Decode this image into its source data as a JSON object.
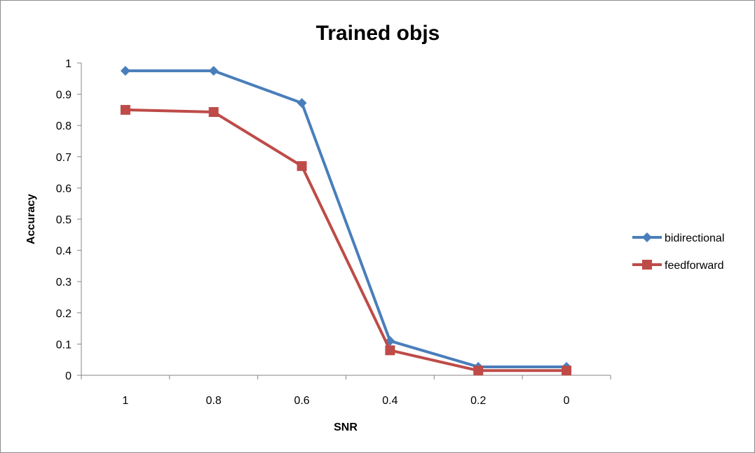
{
  "chart_data": {
    "type": "line",
    "title": "Trained objs",
    "xlabel": "SNR",
    "ylabel": "Accuracy",
    "categories": [
      "1",
      "0.8",
      "0.6",
      "0.4",
      "0.2",
      "0"
    ],
    "ylim": [
      0,
      1
    ],
    "yticks": [
      "0",
      "0.1",
      "0.2",
      "0.3",
      "0.4",
      "0.5",
      "0.6",
      "0.7",
      "0.8",
      "0.9",
      "1"
    ],
    "grid": false,
    "legend_position": "right",
    "series": [
      {
        "name": "bidirectional",
        "color": "#4a7ebb",
        "marker": "diamond",
        "values": [
          0.975,
          0.975,
          0.872,
          0.11,
          0.027,
          0.027
        ]
      },
      {
        "name": "feedforward",
        "color": "#be4b48",
        "marker": "square",
        "values": [
          0.85,
          0.843,
          0.67,
          0.08,
          0.015,
          0.015
        ]
      }
    ]
  }
}
